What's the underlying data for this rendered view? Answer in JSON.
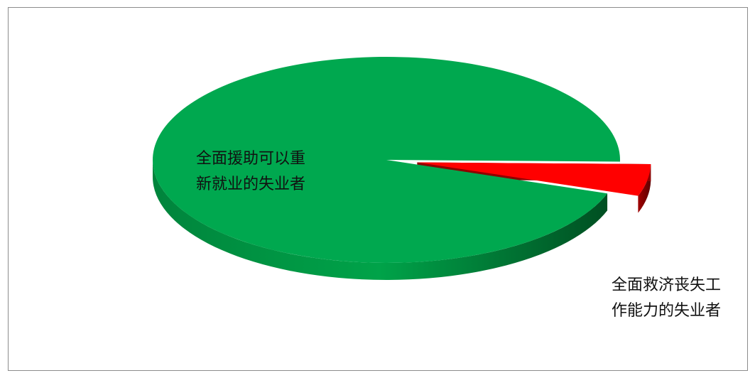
{
  "chart_data": {
    "type": "pie",
    "style": "3d-exploded",
    "slices": [
      {
        "name": "全面援助可以重新就业的失业者",
        "label_lines": [
          "全面援助可以重",
          "新就业的失业者"
        ],
        "value": 0.95,
        "color": "#00a84f"
      },
      {
        "name": "全面救济丧失工作能力的失业者",
        "label_lines": [
          "全面救济丧失工",
          "作能力的失业者"
        ],
        "value": 0.05,
        "color": "#ff0000"
      }
    ],
    "title": "",
    "legend": "none",
    "grid": false
  }
}
